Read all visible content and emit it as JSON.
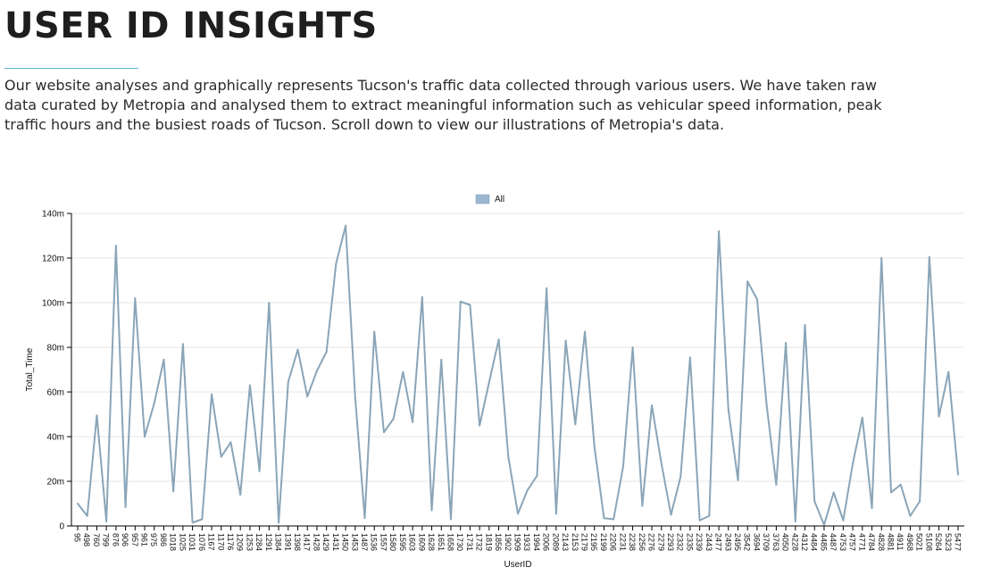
{
  "header": {
    "title": "USER ID INSIGHTS",
    "intro": "Our website analyses and graphically represents Tucson's traffic data collected through various users. We have taken raw data curated by Metropia and analysed them to extract meaningful information such as vehicular speed information, peak traffic hours and the busiest roads of Tucson. Scroll down to view our illustrations of Metropia's data."
  },
  "colors": {
    "line": "#8aa5b8",
    "legend": "#9bb8d0",
    "rule": "#5bb4d6",
    "grid": "#e4e4e4"
  },
  "chart_data": {
    "type": "line",
    "xlabel": "UserID",
    "ylabel": "Total_Time",
    "ylim": [
      0,
      140000000
    ],
    "y_ticks": [
      "0",
      "20m",
      "40m",
      "60m",
      "80m",
      "100m",
      "120m",
      "140m"
    ],
    "grid": true,
    "legend_position": "top-center",
    "series": [
      {
        "name": "All",
        "values": [
          10000000,
          4500000,
          49500000,
          2000000,
          125500000,
          8500000,
          102000000,
          40000000,
          55000000,
          74500000,
          15500000,
          81500000,
          1500000,
          3000000,
          59000000,
          31000000,
          37500000,
          14000000,
          63000000,
          24500000,
          100000000,
          1500000,
          64500000,
          79000000,
          58000000,
          69500000,
          78000000,
          117500000,
          134500000,
          57500000,
          3500000,
          87000000,
          42000000,
          48000000,
          69000000,
          46500000,
          102500000,
          7000000,
          74500000,
          3000000,
          100500000,
          99000000,
          45000000,
          64500000,
          83500000,
          31000000,
          5500000,
          16000000,
          22500000,
          106500000,
          5500000,
          83000000,
          45500000,
          87000000,
          35500000,
          3500000,
          3000000,
          26500000,
          80000000,
          9000000,
          54000000,
          28000000,
          5000000,
          22000000,
          75500000,
          2500000,
          4500000,
          132000000,
          52000000,
          20500000,
          109500000,
          101500000,
          54000000,
          18500000,
          82000000,
          2000000,
          90000000,
          11000000,
          500000,
          15000000,
          2500000,
          28000000,
          48500000,
          8000000,
          120000000,
          15000000,
          18500000,
          4500000,
          11000000,
          120500000,
          49000000,
          69000000,
          23000000
        ]
      }
    ],
    "x_tick_labels": [
      "95",
      "498",
      "760",
      "799",
      "876",
      "906",
      "957",
      "961",
      "975",
      "986",
      "1018",
      "1025",
      "1031",
      "1076",
      "1167",
      "1170",
      "1176",
      "1209",
      "1253",
      "1284",
      "1291",
      "1384",
      "1391",
      "1398",
      "1417",
      "1428",
      "1429",
      "1431",
      "1450",
      "1453",
      "1487",
      "1536",
      "1557",
      "1580",
      "1595",
      "1603",
      "1609",
      "1628",
      "1651",
      "1658",
      "1730",
      "1731",
      "1732",
      "1819",
      "1856",
      "1902",
      "1909",
      "1933",
      "1994",
      "2006",
      "2089",
      "2143",
      "2153",
      "2179",
      "2195",
      "2199",
      "2206",
      "2231",
      "2238",
      "2256",
      "2276",
      "2279",
      "2293",
      "2332",
      "2335",
      "2339",
      "2443",
      "2477",
      "2493",
      "2495",
      "3542",
      "3694",
      "3709",
      "3763",
      "4050",
      "4228",
      "4312",
      "4484",
      "4485",
      "4487",
      "4753",
      "4757",
      "4771",
      "4784",
      "4828",
      "4881",
      "4911",
      "4968",
      "5021",
      "5108",
      "5264",
      "5323",
      "5477"
    ]
  }
}
